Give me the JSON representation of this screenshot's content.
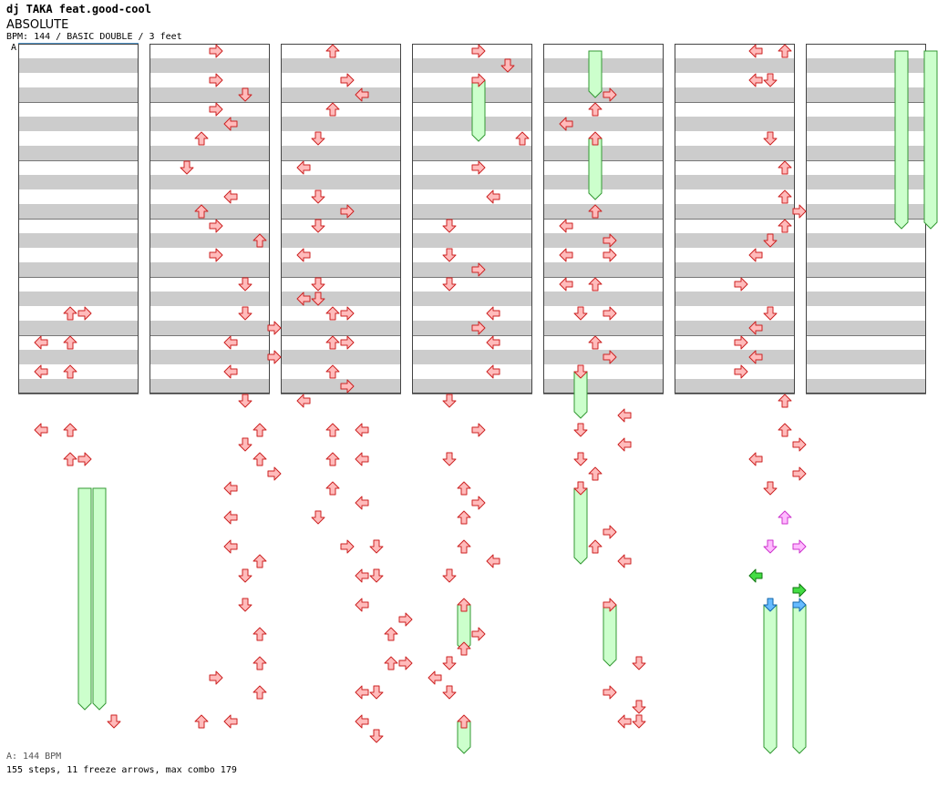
{
  "song": {
    "artist": "dj TAKA feat.good-cool",
    "title": "ABSOLUTE",
    "info": "BPM: 144 / BASIC DOUBLE / 3 feet",
    "bpm_marker": "A"
  },
  "footer": {
    "bpm_legend": "A: 144 BPM",
    "stats": "155 steps, 11 freeze arrows, max combo 179"
  },
  "colors": {
    "stripe": "#cccccc",
    "border": "#444444",
    "arrow_red_fill": "#ffbbbb",
    "arrow_red_stroke": "#cc2222",
    "arrow_pink_fill": "#ffbbff",
    "arrow_pink_stroke": "#cc33cc",
    "arrow_green_fill": "#44dd44",
    "arrow_green_stroke": "#117711",
    "arrow_blue_fill": "#66bbff",
    "arrow_blue_stroke": "#1166aa",
    "freeze_fill": "#ccffcc",
    "freeze_stroke": "#339933"
  },
  "chart_data": {
    "type": "step-chart",
    "mode": "BASIC DOUBLE",
    "columns": 7,
    "measures_per_column": 6,
    "rows_per_measure": 16,
    "lanes": [
      "L1",
      "D1",
      "U1",
      "R1",
      "L2",
      "D2",
      "U2",
      "R2"
    ],
    "notes": [
      {
        "c": 0,
        "r": 18,
        "l": 3
      },
      {
        "c": 0,
        "r": 18,
        "l": 4
      },
      {
        "c": 0,
        "r": 20,
        "l": 1
      },
      {
        "c": 0,
        "r": 20,
        "l": 3
      },
      {
        "c": 0,
        "r": 22,
        "l": 1
      },
      {
        "c": 0,
        "r": 22,
        "l": 3
      },
      {
        "c": 0,
        "r": 26,
        "l": 1
      },
      {
        "c": 0,
        "r": 26,
        "l": 3
      },
      {
        "c": 0,
        "r": 28,
        "l": 3
      },
      {
        "c": 0,
        "r": 28,
        "l": 4
      },
      {
        "c": 0,
        "r": 46,
        "l": 6
      },
      {
        "c": 1,
        "r": 0,
        "l": 4
      },
      {
        "c": 1,
        "r": 2,
        "l": 4
      },
      {
        "c": 1,
        "r": 3,
        "l": 6
      },
      {
        "c": 1,
        "r": 4,
        "l": 4
      },
      {
        "c": 1,
        "r": 5,
        "l": 5
      },
      {
        "c": 1,
        "r": 6,
        "l": 3
      },
      {
        "c": 1,
        "r": 8,
        "l": 2
      },
      {
        "c": 1,
        "r": 10,
        "l": 5
      },
      {
        "c": 1,
        "r": 11,
        "l": 3
      },
      {
        "c": 1,
        "r": 12,
        "l": 4
      },
      {
        "c": 1,
        "r": 13,
        "l": 7
      },
      {
        "c": 1,
        "r": 14,
        "l": 4
      },
      {
        "c": 1,
        "r": 16,
        "l": 6
      },
      {
        "c": 1,
        "r": 18,
        "l": 6
      },
      {
        "c": 1,
        "r": 19,
        "l": 8
      },
      {
        "c": 1,
        "r": 20,
        "l": 5
      },
      {
        "c": 1,
        "r": 21,
        "l": 8
      },
      {
        "c": 1,
        "r": 22,
        "l": 5
      },
      {
        "c": 1,
        "r": 24,
        "l": 6
      },
      {
        "c": 1,
        "r": 26,
        "l": 7
      },
      {
        "c": 1,
        "r": 27,
        "l": 6
      },
      {
        "c": 1,
        "r": 28,
        "l": 7
      },
      {
        "c": 1,
        "r": 29,
        "l": 8
      },
      {
        "c": 1,
        "r": 30,
        "l": 5
      },
      {
        "c": 1,
        "r": 32,
        "l": 5
      },
      {
        "c": 1,
        "r": 34,
        "l": 5
      },
      {
        "c": 1,
        "r": 35,
        "l": 7
      },
      {
        "c": 1,
        "r": 36,
        "l": 6
      },
      {
        "c": 1,
        "r": 38,
        "l": 6
      },
      {
        "c": 1,
        "r": 40,
        "l": 7
      },
      {
        "c": 1,
        "r": 42,
        "l": 7
      },
      {
        "c": 1,
        "r": 43,
        "l": 4
      },
      {
        "c": 1,
        "r": 44,
        "l": 7
      },
      {
        "c": 1,
        "r": 46,
        "l": 3
      },
      {
        "c": 1,
        "r": 46,
        "l": 5
      },
      {
        "c": 2,
        "r": 0,
        "l": 3
      },
      {
        "c": 2,
        "r": 2,
        "l": 4
      },
      {
        "c": 2,
        "r": 3,
        "l": 5
      },
      {
        "c": 2,
        "r": 4,
        "l": 3
      },
      {
        "c": 2,
        "r": 6,
        "l": 2
      },
      {
        "c": 2,
        "r": 8,
        "l": 1
      },
      {
        "c": 2,
        "r": 10,
        "l": 2
      },
      {
        "c": 2,
        "r": 11,
        "l": 4
      },
      {
        "c": 2,
        "r": 12,
        "l": 2
      },
      {
        "c": 2,
        "r": 14,
        "l": 1
      },
      {
        "c": 2,
        "r": 16,
        "l": 2
      },
      {
        "c": 2,
        "r": 17,
        "l": 1
      },
      {
        "c": 2,
        "r": 17,
        "l": 2
      },
      {
        "c": 2,
        "r": 18,
        "l": 3
      },
      {
        "c": 2,
        "r": 18,
        "l": 4
      },
      {
        "c": 2,
        "r": 20,
        "l": 3
      },
      {
        "c": 2,
        "r": 20,
        "l": 4
      },
      {
        "c": 2,
        "r": 22,
        "l": 3
      },
      {
        "c": 2,
        "r": 23,
        "l": 4
      },
      {
        "c": 2,
        "r": 24,
        "l": 1
      },
      {
        "c": 2,
        "r": 26,
        "l": 3
      },
      {
        "c": 2,
        "r": 26,
        "l": 5
      },
      {
        "c": 2,
        "r": 28,
        "l": 3
      },
      {
        "c": 2,
        "r": 28,
        "l": 5
      },
      {
        "c": 2,
        "r": 30,
        "l": 3
      },
      {
        "c": 2,
        "r": 31,
        "l": 5
      },
      {
        "c": 2,
        "r": 32,
        "l": 2
      },
      {
        "c": 2,
        "r": 34,
        "l": 4
      },
      {
        "c": 2,
        "r": 34,
        "l": 6
      },
      {
        "c": 2,
        "r": 36,
        "l": 5
      },
      {
        "c": 2,
        "r": 36,
        "l": 6
      },
      {
        "c": 2,
        "r": 38,
        "l": 5
      },
      {
        "c": 2,
        "r": 39,
        "l": 8
      },
      {
        "c": 2,
        "r": 40,
        "l": 7
      },
      {
        "c": 2,
        "r": 42,
        "l": 7
      },
      {
        "c": 2,
        "r": 42,
        "l": 8
      },
      {
        "c": 2,
        "r": 44,
        "l": 5
      },
      {
        "c": 2,
        "r": 44,
        "l": 6
      },
      {
        "c": 2,
        "r": 46,
        "l": 5
      },
      {
        "c": 2,
        "r": 47,
        "l": 6
      },
      {
        "c": 3,
        "r": 0,
        "l": 4
      },
      {
        "c": 3,
        "r": 1,
        "l": 6
      },
      {
        "c": 3,
        "r": 2,
        "l": 4
      },
      {
        "c": 3,
        "r": 6,
        "l": 7
      },
      {
        "c": 3,
        "r": 8,
        "l": 4
      },
      {
        "c": 3,
        "r": 10,
        "l": 5
      },
      {
        "c": 3,
        "r": 12,
        "l": 2
      },
      {
        "c": 3,
        "r": 14,
        "l": 2
      },
      {
        "c": 3,
        "r": 15,
        "l": 4
      },
      {
        "c": 3,
        "r": 16,
        "l": 2
      },
      {
        "c": 3,
        "r": 18,
        "l": 5
      },
      {
        "c": 3,
        "r": 19,
        "l": 4
      },
      {
        "c": 3,
        "r": 20,
        "l": 5
      },
      {
        "c": 3,
        "r": 22,
        "l": 5
      },
      {
        "c": 3,
        "r": 24,
        "l": 2
      },
      {
        "c": 3,
        "r": 26,
        "l": 4
      },
      {
        "c": 3,
        "r": 28,
        "l": 2
      },
      {
        "c": 3,
        "r": 30,
        "l": 3
      },
      {
        "c": 3,
        "r": 31,
        "l": 4
      },
      {
        "c": 3,
        "r": 32,
        "l": 3
      },
      {
        "c": 3,
        "r": 34,
        "l": 3
      },
      {
        "c": 3,
        "r": 35,
        "l": 5
      },
      {
        "c": 3,
        "r": 36,
        "l": 2
      },
      {
        "c": 3,
        "r": 38,
        "l": 3
      },
      {
        "c": 3,
        "r": 40,
        "l": 4
      },
      {
        "c": 3,
        "r": 41,
        "l": 3
      },
      {
        "c": 3,
        "r": 42,
        "l": 2
      },
      {
        "c": 3,
        "r": 43,
        "l": 1
      },
      {
        "c": 3,
        "r": 44,
        "l": 2
      },
      {
        "c": 3,
        "r": 46,
        "l": 3
      },
      {
        "c": 4,
        "r": 3,
        "l": 4
      },
      {
        "c": 4,
        "r": 4,
        "l": 3
      },
      {
        "c": 4,
        "r": 5,
        "l": 1
      },
      {
        "c": 4,
        "r": 6,
        "l": 3
      },
      {
        "c": 4,
        "r": 11,
        "l": 3
      },
      {
        "c": 4,
        "r": 12,
        "l": 1
      },
      {
        "c": 4,
        "r": 13,
        "l": 4
      },
      {
        "c": 4,
        "r": 14,
        "l": 1
      },
      {
        "c": 4,
        "r": 14,
        "l": 4
      },
      {
        "c": 4,
        "r": 16,
        "l": 1
      },
      {
        "c": 4,
        "r": 16,
        "l": 3
      },
      {
        "c": 4,
        "r": 18,
        "l": 2
      },
      {
        "c": 4,
        "r": 18,
        "l": 4
      },
      {
        "c": 4,
        "r": 20,
        "l": 3
      },
      {
        "c": 4,
        "r": 21,
        "l": 4
      },
      {
        "c": 4,
        "r": 22,
        "l": 2
      },
      {
        "c": 4,
        "r": 25,
        "l": 5
      },
      {
        "c": 4,
        "r": 26,
        "l": 2
      },
      {
        "c": 4,
        "r": 27,
        "l": 5
      },
      {
        "c": 4,
        "r": 28,
        "l": 2
      },
      {
        "c": 4,
        "r": 29,
        "l": 3
      },
      {
        "c": 4,
        "r": 30,
        "l": 2
      },
      {
        "c": 4,
        "r": 33,
        "l": 4
      },
      {
        "c": 4,
        "r": 34,
        "l": 3
      },
      {
        "c": 4,
        "r": 35,
        "l": 5
      },
      {
        "c": 4,
        "r": 38,
        "l": 4
      },
      {
        "c": 4,
        "r": 42,
        "l": 6
      },
      {
        "c": 4,
        "r": 44,
        "l": 4
      },
      {
        "c": 4,
        "r": 45,
        "l": 6
      },
      {
        "c": 4,
        "r": 46,
        "l": 5
      },
      {
        "c": 4,
        "r": 46,
        "l": 6
      },
      {
        "c": 5,
        "r": 0,
        "l": 5
      },
      {
        "c": 5,
        "r": 0,
        "l": 7
      },
      {
        "c": 5,
        "r": 2,
        "l": 5
      },
      {
        "c": 5,
        "r": 2,
        "l": 6
      },
      {
        "c": 5,
        "r": 6,
        "l": 6
      },
      {
        "c": 5,
        "r": 8,
        "l": 7
      },
      {
        "c": 5,
        "r": 10,
        "l": 7
      },
      {
        "c": 5,
        "r": 11,
        "l": 8
      },
      {
        "c": 5,
        "r": 12,
        "l": 7
      },
      {
        "c": 5,
        "r": 13,
        "l": 6
      },
      {
        "c": 5,
        "r": 14,
        "l": 5
      },
      {
        "c": 5,
        "r": 16,
        "l": 4
      },
      {
        "c": 5,
        "r": 18,
        "l": 6
      },
      {
        "c": 5,
        "r": 19,
        "l": 5
      },
      {
        "c": 5,
        "r": 20,
        "l": 4
      },
      {
        "c": 5,
        "r": 21,
        "l": 5
      },
      {
        "c": 5,
        "r": 22,
        "l": 4
      },
      {
        "c": 5,
        "r": 24,
        "l": 7
      },
      {
        "c": 5,
        "r": 26,
        "l": 7
      },
      {
        "c": 5,
        "r": 27,
        "l": 8
      },
      {
        "c": 5,
        "r": 28,
        "l": 5
      },
      {
        "c": 5,
        "r": 29,
        "l": 8
      },
      {
        "c": 5,
        "r": 30,
        "l": 6
      },
      {
        "c": 5,
        "r": 32,
        "l": 7,
        "t": "pink"
      },
      {
        "c": 5,
        "r": 34,
        "l": 6,
        "t": "pink"
      },
      {
        "c": 5,
        "r": 34,
        "l": 8,
        "t": "pink"
      },
      {
        "c": 5,
        "r": 36,
        "l": 5,
        "t": "green"
      },
      {
        "c": 5,
        "r": 37,
        "l": 8,
        "t": "green"
      },
      {
        "c": 5,
        "r": 38,
        "l": 6,
        "t": "blue"
      },
      {
        "c": 5,
        "r": 38,
        "l": 8,
        "t": "blue"
      }
    ],
    "freezes": [
      {
        "c": 0,
        "l": 4,
        "from": 30,
        "to": 45
      },
      {
        "c": 0,
        "l": 5,
        "from": 30,
        "to": 45
      },
      {
        "c": 3,
        "l": 4,
        "from": 2,
        "to": 6
      },
      {
        "c": 3,
        "l": 3,
        "from": 38,
        "to": 41
      },
      {
        "c": 3,
        "l": 3,
        "from": 46,
        "to": 48
      },
      {
        "c": 4,
        "l": 3,
        "from": 0,
        "to": 3
      },
      {
        "c": 4,
        "l": 3,
        "from": 6,
        "to": 10
      },
      {
        "c": 4,
        "l": 2,
        "from": 22,
        "to": 25
      },
      {
        "c": 4,
        "l": 2,
        "from": 30,
        "to": 35
      },
      {
        "c": 4,
        "l": 4,
        "from": 38,
        "to": 42
      },
      {
        "c": 5,
        "l": 6,
        "from": 38,
        "to": 48
      },
      {
        "c": 5,
        "l": 8,
        "from": 38,
        "to": 48
      },
      {
        "c": 6,
        "l": 6,
        "from": 0,
        "to": 12
      },
      {
        "c": 6,
        "l": 8,
        "from": 0,
        "to": 12
      }
    ]
  }
}
